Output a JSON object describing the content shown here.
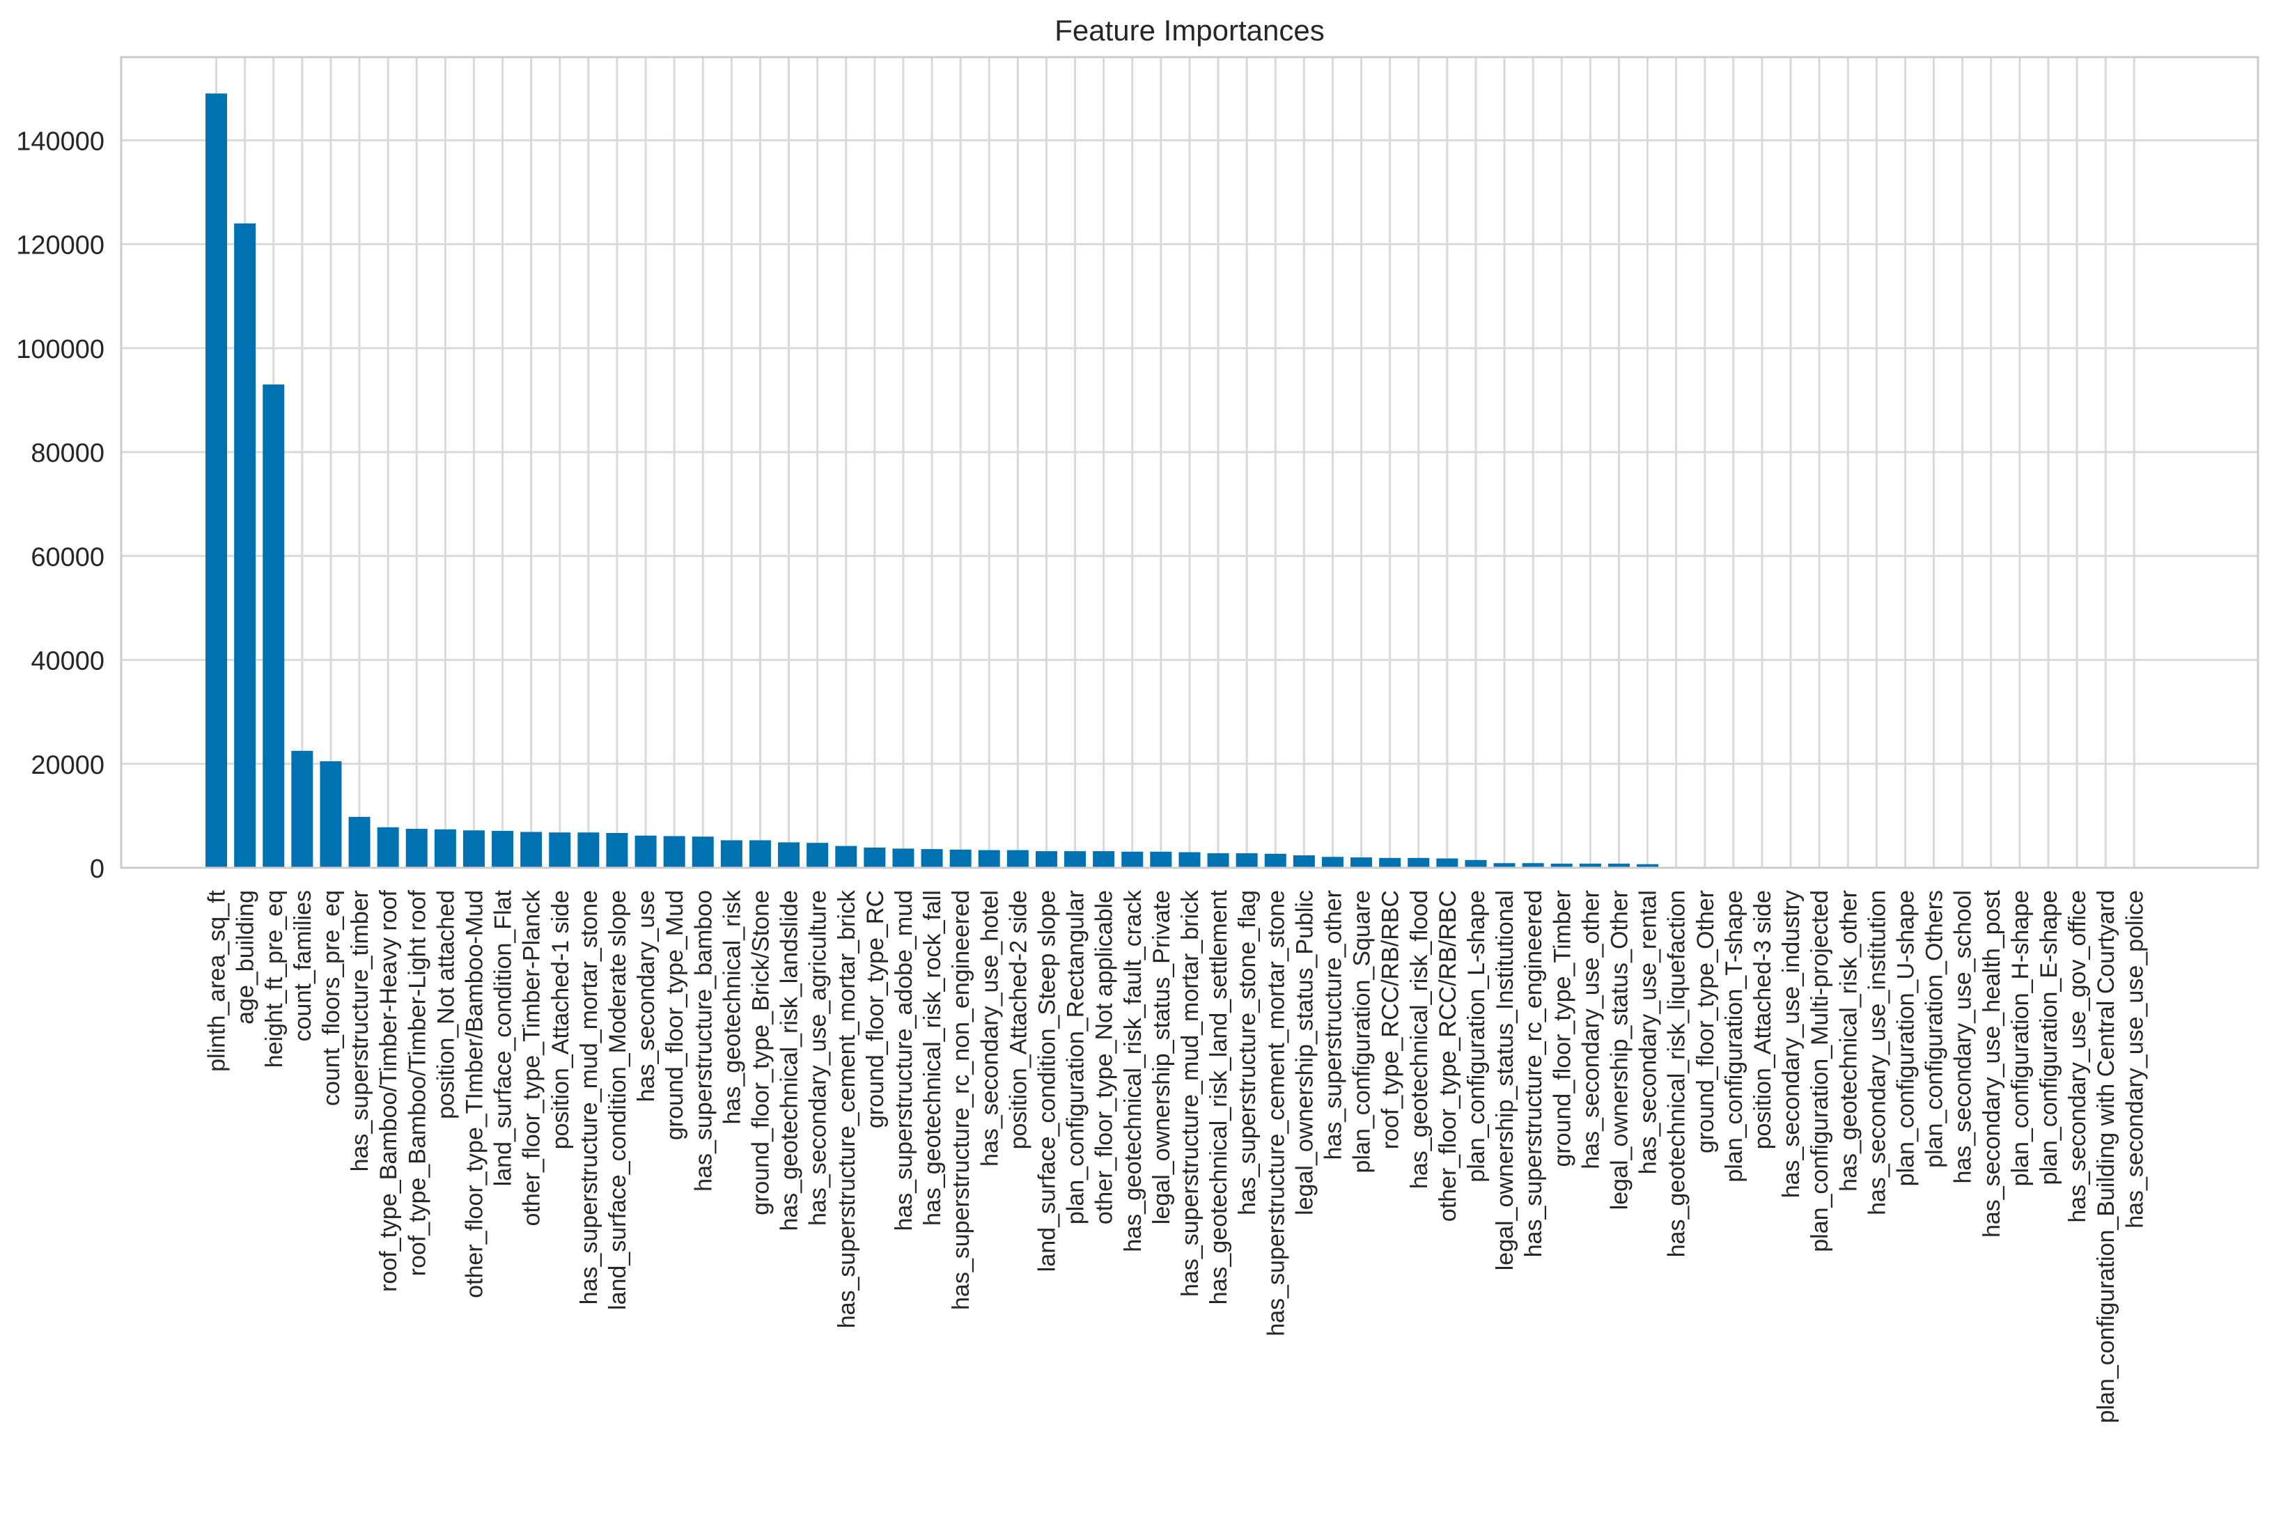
{
  "chart_data": {
    "type": "bar",
    "title": "Feature Importances",
    "xlabel": "",
    "ylabel": "",
    "ylim": [
      0,
      156000
    ],
    "yticks": [
      0,
      20000,
      40000,
      60000,
      80000,
      100000,
      120000,
      140000
    ],
    "grid": true,
    "legend": "none",
    "bar_color": "#0072B2",
    "categories": [
      "plinth_area_sq_ft",
      "age_building",
      "height_ft_pre_eq",
      "count_families",
      "count_floors_pre_eq",
      "has_superstructure_timber",
      "roof_type_Bamboo/Timber-Heavy roof",
      "roof_type_Bamboo/Timber-Light roof",
      "position_Not attached",
      "other_floor_type_TImber/Bamboo-Mud",
      "land_surface_condition_Flat",
      "other_floor_type_Timber-Planck",
      "position_Attached-1 side",
      "has_superstructure_mud_mortar_stone",
      "land_surface_condition_Moderate slope",
      "has_secondary_use",
      "ground_floor_type_Mud",
      "has_superstructure_bamboo",
      "has_geotechnical_risk",
      "ground_floor_type_Brick/Stone",
      "has_geotechnical_risk_landslide",
      "has_secondary_use_agriculture",
      "has_superstructure_cement_mortar_brick",
      "ground_floor_type_RC",
      "has_superstructure_adobe_mud",
      "has_geotechnical_risk_rock_fall",
      "has_superstructure_rc_non_engineered",
      "has_secondary_use_hotel",
      "position_Attached-2 side",
      "land_surface_condition_Steep slope",
      "plan_configuration_Rectangular",
      "other_floor_type_Not applicable",
      "has_geotechnical_risk_fault_crack",
      "legal_ownership_status_Private",
      "has_superstructure_mud_mortar_brick",
      "has_geotechnical_risk_land_settlement",
      "has_superstructure_stone_flag",
      "has_superstructure_cement_mortar_stone",
      "legal_ownership_status_Public",
      "has_superstructure_other",
      "plan_configuration_Square",
      "roof_type_RCC/RB/RBC",
      "has_geotechnical_risk_flood",
      "other_floor_type_RCC/RB/RBC",
      "plan_configuration_L-shape",
      "legal_ownership_status_Institutional",
      "has_superstructure_rc_engineered",
      "ground_floor_type_Timber",
      "has_secondary_use_other",
      "legal_ownership_status_Other",
      "has_secondary_use_rental",
      "has_geotechnical_risk_liquefaction",
      "ground_floor_type_Other",
      "plan_configuration_T-shape",
      "position_Attached-3 side",
      "has_secondary_use_industry",
      "plan_configuration_Multi-projected",
      "has_geotechnical_risk_other",
      "has_secondary_use_institution",
      "plan_configuration_U-shape",
      "plan_configuration_Others",
      "has_secondary_use_school",
      "has_secondary_use_health_post",
      "plan_configuration_H-shape",
      "plan_configuration_E-shape",
      "has_secondary_use_gov_office",
      "plan_configuration_Building with Central Courtyard",
      "has_secondary_use_use_police"
    ],
    "values": [
      149000,
      124000,
      93000,
      22500,
      20500,
      9800,
      7800,
      7500,
      7400,
      7200,
      7100,
      6900,
      6800,
      6800,
      6700,
      6200,
      6100,
      6000,
      5300,
      5300,
      4900,
      4800,
      4200,
      3900,
      3700,
      3600,
      3500,
      3400,
      3400,
      3200,
      3200,
      3200,
      3100,
      3100,
      3000,
      2800,
      2800,
      2700,
      2400,
      2100,
      2000,
      1900,
      1900,
      1800,
      1500,
      900,
      900,
      800,
      800,
      800,
      700,
      200,
      200,
      200,
      100,
      50,
      30,
      30,
      20,
      20,
      20,
      15,
      15,
      10,
      10,
      10,
      5,
      5
    ]
  }
}
